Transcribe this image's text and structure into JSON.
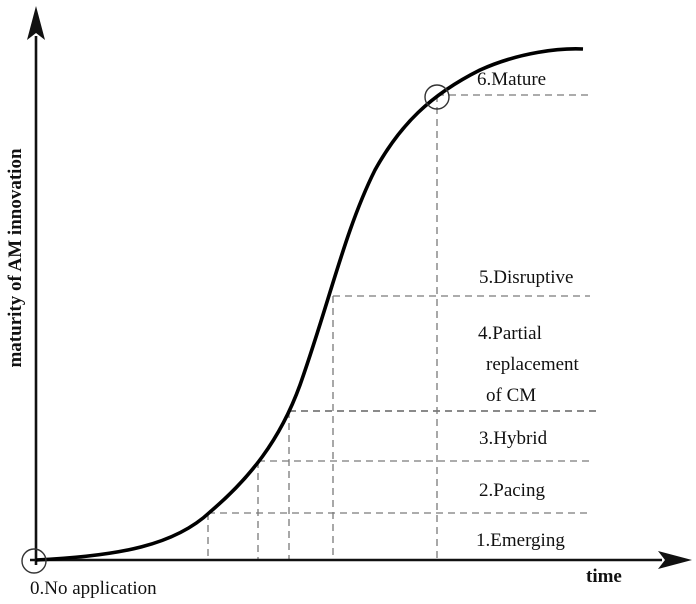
{
  "axes": {
    "y_title": "maturity of AM innovation",
    "x_title": "time"
  },
  "stages": [
    {
      "label": "0.No application"
    },
    {
      "label": "1.Emerging"
    },
    {
      "label": "2.Pacing"
    },
    {
      "label": "3.Hybrid"
    },
    {
      "label": "4.Partial",
      "label_line2": "replacement",
      "label_line3": "of CM"
    },
    {
      "label": "5.Disruptive"
    },
    {
      "label": "6.Mature"
    }
  ],
  "markers": [
    {
      "name": "origin-marker"
    },
    {
      "name": "mature-marker"
    }
  ]
}
